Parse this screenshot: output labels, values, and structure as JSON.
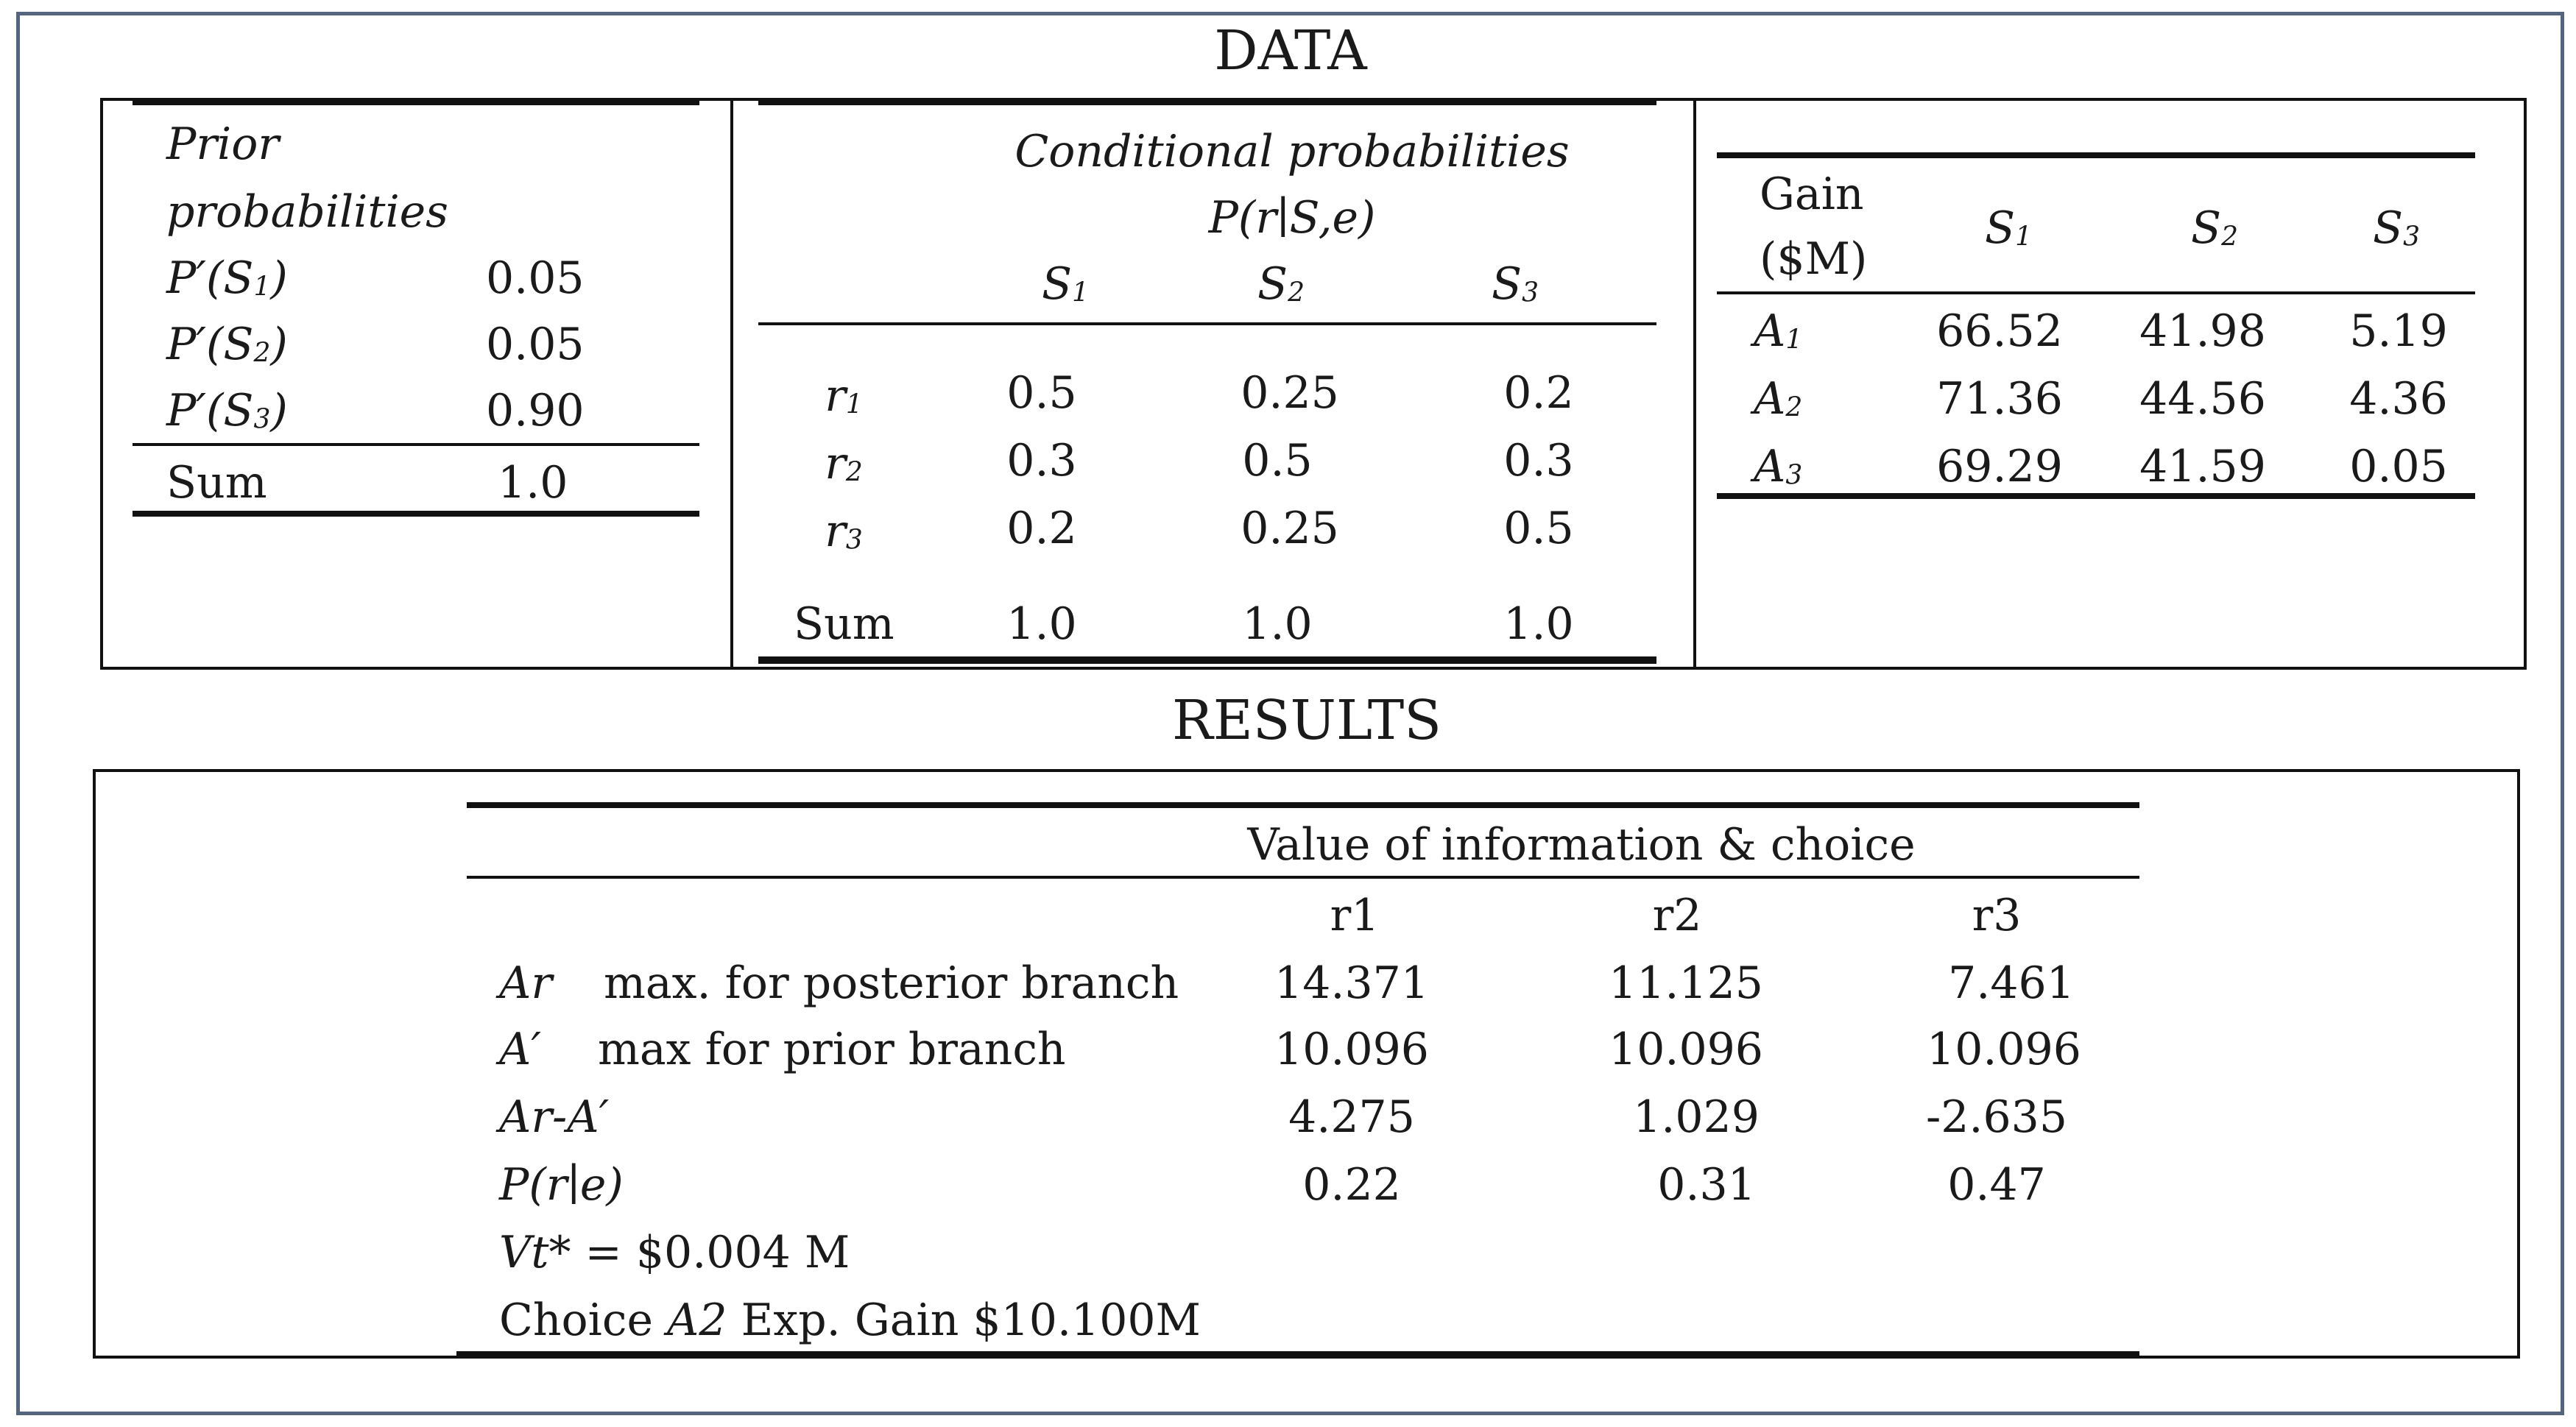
{
  "data_title": "DATA",
  "results_title": "RESULTS",
  "prior": {
    "header_line1": "Prior",
    "header_line2": "probabilities",
    "rows": [
      {
        "label": "P′(S",
        "sub": "1",
        "close": ")",
        "value": "0.05"
      },
      {
        "label": "P′(S",
        "sub": "2",
        "close": ")",
        "value": "0.05"
      },
      {
        "label": "P′(S",
        "sub": "3",
        "close": ")",
        "value": "0.90"
      }
    ],
    "sum_label": "Sum",
    "sum_value": "1.0"
  },
  "conditional": {
    "header_line1": "Conditional probabilities",
    "header_line2": "P(r∣S,e)",
    "columns": [
      {
        "letter": "S",
        "sub": "1"
      },
      {
        "letter": "S",
        "sub": "2"
      },
      {
        "letter": "S",
        "sub": "3"
      }
    ],
    "rows": [
      {
        "letter": "r",
        "sub": "1",
        "values": [
          "0.5",
          "0.25",
          "0.2"
        ]
      },
      {
        "letter": "r",
        "sub": "2",
        "values": [
          "0.3",
          "0.5",
          "0.3"
        ]
      },
      {
        "letter": "r",
        "sub": "3",
        "values": [
          "0.2",
          "0.25",
          "0.5"
        ]
      }
    ],
    "sum_label": "Sum",
    "sum_values": [
      "1.0",
      "1.0",
      "1.0"
    ]
  },
  "gain": {
    "header_line1": "Gain",
    "header_line2": "($M)",
    "columns": [
      {
        "letter": "S",
        "sub": "1"
      },
      {
        "letter": "S",
        "sub": "2"
      },
      {
        "letter": "S",
        "sub": "3"
      }
    ],
    "rows": [
      {
        "letter": "A",
        "sub": "1",
        "values": [
          "66.52",
          "41.98",
          "5.19"
        ]
      },
      {
        "letter": "A",
        "sub": "2",
        "values": [
          "71.36",
          "44.56",
          "4.36"
        ]
      },
      {
        "letter": "A",
        "sub": "3",
        "values": [
          "69.29",
          "41.59",
          "0.05"
        ]
      }
    ]
  },
  "results": {
    "header": "Value of information & choice",
    "columns": [
      "r1",
      "r2",
      "r3"
    ],
    "rows": [
      {
        "symbol": "Ar",
        "description": "max. for posterior branch",
        "values": [
          "14.371",
          "11.125",
          "7.461"
        ]
      },
      {
        "symbol": "A′",
        "description": "max for prior branch",
        "values": [
          "10.096",
          "10.096",
          "10.096"
        ]
      },
      {
        "symbol": "Ar-A′",
        "description": "",
        "values": [
          "4.275",
          "1.029",
          "-2.635"
        ]
      },
      {
        "symbol": "P(r∣e)",
        "description": "",
        "values": [
          "0.22",
          "0.31",
          "0.47"
        ]
      }
    ],
    "vt_symbol": "Vt*",
    "vt_value": " = $0.004 M",
    "choice_prefix": "Choice ",
    "choice_action": "A2",
    "choice_suffix": " Exp. Gain $10.100M"
  }
}
